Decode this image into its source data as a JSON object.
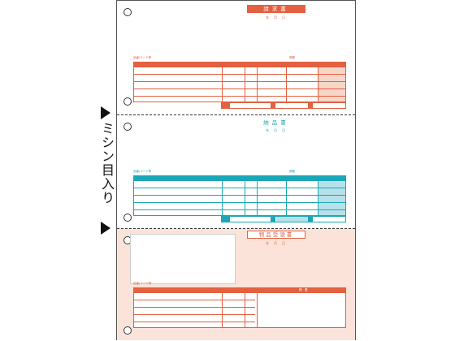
{
  "side_label": "ミシン目入り",
  "section1": {
    "title": "請求書",
    "date": "年　月　日",
    "table_label": "品番/コード等",
    "right_label": "摘要",
    "colors": {
      "primary": "#e36040",
      "shade": "#f6d6c8"
    }
  },
  "section2": {
    "title": "納品書",
    "date": "年　月　日",
    "table_label": "品番/コード等",
    "right_label": "摘要",
    "colors": {
      "primary": "#1aa7b8",
      "shade": "#b7e1ea"
    }
  },
  "section3": {
    "title": "物品受領書",
    "date": "年　月　日",
    "table_label": "品番/コード等",
    "right_label": "摘　要",
    "colors": {
      "primary": "#e36040",
      "background": "#fbe3da"
    }
  }
}
